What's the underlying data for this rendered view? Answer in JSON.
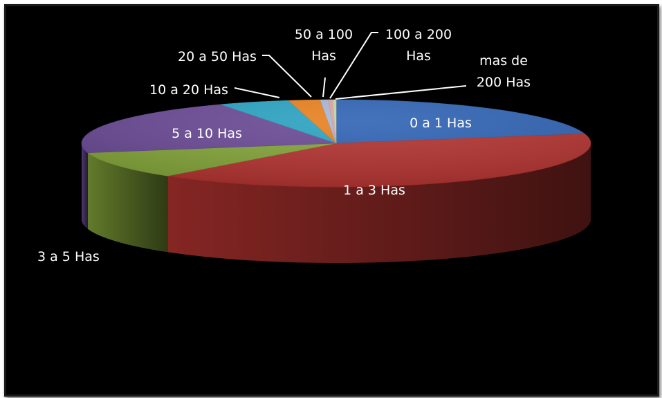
{
  "chart_data": {
    "type": "pie",
    "style": "3d-exploded-perspective",
    "legend": "none",
    "series": [
      {
        "name": "0 a 1 Has",
        "value": 21.5,
        "color": "#2f63b4",
        "label_lines": [
          "0 a 1 Has"
        ]
      },
      {
        "name": "1 a 3 Has",
        "value": 40.0,
        "color": "#b33330",
        "label_lines": [
          "1 a 3 Has"
        ]
      },
      {
        "name": "3 a 5 Has",
        "value": 10.0,
        "color": "#84a63a",
        "label_lines": [
          "3 a 5 Has"
        ]
      },
      {
        "name": "5 a 10 Has",
        "value": 21.0,
        "color": "#6a4a96",
        "label_lines": [
          "5 a 10 Has"
        ]
      },
      {
        "name": "10 a 20 Has",
        "value": 4.5,
        "color": "#2aa3c2",
        "label_lines": [
          "10 a 20 Has"
        ]
      },
      {
        "name": "20 a 50 Has",
        "value": 2.0,
        "color": "#e8811f",
        "label_lines": [
          "20 a 50 Has"
        ]
      },
      {
        "name": "50 a 100 Has",
        "value": 0.5,
        "color": "#a9b7d6",
        "label_lines": [
          "50 a 100",
          "Has"
        ]
      },
      {
        "name": "100 a 200 Has",
        "value": 0.3,
        "color": "#d9a5a4",
        "label_lines": [
          "100 a 200",
          "Has"
        ]
      },
      {
        "name": "mas de 200 Has",
        "value": 0.2,
        "color": "#c9d9a4",
        "label_lines": [
          "mas de",
          "200 Has"
        ]
      }
    ]
  }
}
